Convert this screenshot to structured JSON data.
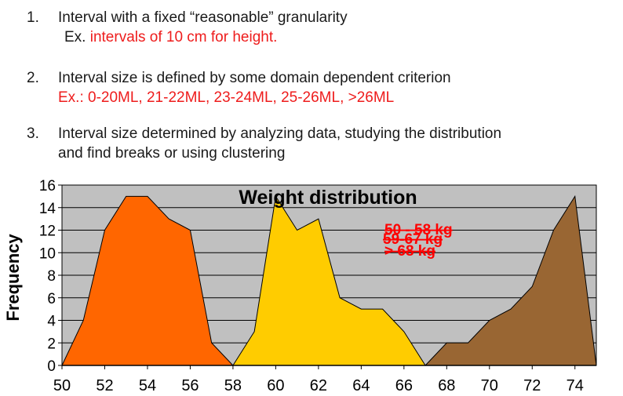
{
  "items": [
    {
      "number": "1.",
      "text": "Interval with a fixed “reasonable” granularity",
      "example": "Ex. ",
      "example_red": "intervals of  10 cm for height."
    },
    {
      "number": "2.",
      "text": "Interval size is defined by some domain dependent criterion",
      "example_red": "Ex.: 0-20ML, 21-22ML, 23-24ML, 25-26ML, >26ML"
    },
    {
      "number": "3.",
      "text": "Interval size determined by analyzing data, studying the distribution",
      "text2": "and find breaks or using clustering"
    }
  ],
  "chart_data": {
    "type": "area",
    "title": "Weight distribution",
    "ylabel": "Frequency",
    "xlabel": "",
    "xlim": [
      50,
      75
    ],
    "ylim": [
      0,
      16
    ],
    "x_ticks": [
      50,
      52,
      54,
      56,
      58,
      60,
      62,
      64,
      66,
      68,
      70,
      72,
      74
    ],
    "y_ticks": [
      0,
      2,
      4,
      6,
      8,
      10,
      12,
      14,
      16
    ],
    "grid": true,
    "plot_background": "#c0c0c0",
    "series": [
      {
        "name": "50 - 58 kg",
        "color": "#ff6600",
        "x": [
          50,
          51,
          52,
          53,
          54,
          55,
          56,
          57,
          58
        ],
        "y": [
          0,
          4,
          12,
          15,
          15,
          13,
          12,
          2,
          0
        ]
      },
      {
        "name": "59-67 kg",
        "color": "#ffcc00",
        "x": [
          58,
          59,
          60,
          61,
          62,
          63,
          64,
          65,
          66,
          67
        ],
        "y": [
          0,
          3,
          15,
          12,
          13,
          6,
          5,
          5,
          3,
          0
        ]
      },
      {
        "name": "> 68 kg",
        "color": "#996633",
        "x": [
          67,
          68,
          69,
          70,
          71,
          72,
          73,
          74,
          75
        ],
        "y": [
          0,
          2,
          2,
          4,
          5,
          7,
          12,
          15,
          0
        ]
      }
    ],
    "annotations": [
      "50 - 58 kg",
      "59-67 kg",
      "> 68 kg"
    ],
    "annotation_color": "#ff0000"
  }
}
